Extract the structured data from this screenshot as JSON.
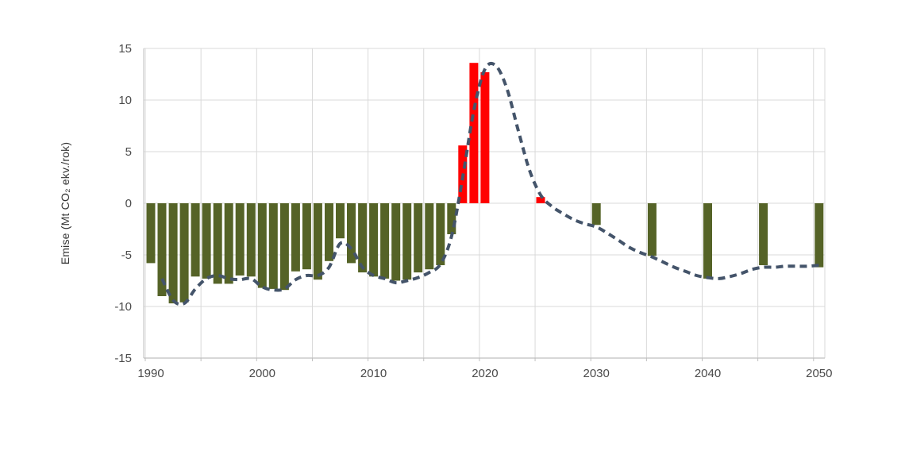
{
  "page": {
    "background": "#FFFFFF"
  },
  "chart_data": {
    "type": "bar",
    "subtype": "bar+dashed-line-combo",
    "title": "",
    "xlabel": "",
    "ylabel": "Emise (Mt CO₂ ekv./rok)",
    "ylim": [
      -15,
      15
    ],
    "yticks": [
      15,
      10,
      5,
      0,
      -5,
      -10,
      -15
    ],
    "xticks": [
      1990,
      2000,
      2010,
      2020,
      2030,
      2040,
      2050
    ],
    "xlim": [
      1989.3,
      2050.6
    ],
    "grid": {
      "horizontal_every": 5,
      "vertical_every_years": 5,
      "visible": true
    },
    "legend": {
      "position": "none"
    },
    "series": [
      {
        "name": "bars",
        "type": "bar",
        "note": "negative = olive sink bars, positive = red source bars",
        "points": [
          {
            "year": 1990,
            "value": -5.8
          },
          {
            "year": 1991,
            "value": -9.0
          },
          {
            "year": 1992,
            "value": -9.7
          },
          {
            "year": 1993,
            "value": -9.6
          },
          {
            "year": 1994,
            "value": -7.1
          },
          {
            "year": 1995,
            "value": -7.3
          },
          {
            "year": 1996,
            "value": -7.8
          },
          {
            "year": 1997,
            "value": -7.8
          },
          {
            "year": 1998,
            "value": -7.0
          },
          {
            "year": 1999,
            "value": -7.1
          },
          {
            "year": 2000,
            "value": -8.2
          },
          {
            "year": 2001,
            "value": -8.3
          },
          {
            "year": 2002,
            "value": -8.4
          },
          {
            "year": 2003,
            "value": -6.6
          },
          {
            "year": 2004,
            "value": -6.4
          },
          {
            "year": 2005,
            "value": -7.4
          },
          {
            "year": 2006,
            "value": -5.6
          },
          {
            "year": 2007,
            "value": -3.4
          },
          {
            "year": 2008,
            "value": -5.8
          },
          {
            "year": 2009,
            "value": -6.7
          },
          {
            "year": 2010,
            "value": -7.1
          },
          {
            "year": 2011,
            "value": -7.3
          },
          {
            "year": 2012,
            "value": -7.5
          },
          {
            "year": 2013,
            "value": -7.4
          },
          {
            "year": 2014,
            "value": -6.7
          },
          {
            "year": 2015,
            "value": -6.4
          },
          {
            "year": 2016,
            "value": -6.0
          },
          {
            "year": 2017,
            "value": -3.0
          },
          {
            "year": 2018,
            "value": 5.6
          },
          {
            "year": 2019,
            "value": 13.6
          },
          {
            "year": 2020,
            "value": 12.7
          },
          {
            "year": 2025,
            "value": 0.6
          },
          {
            "year": 2030,
            "value": -2.1
          },
          {
            "year": 2035,
            "value": -5.1
          },
          {
            "year": 2040,
            "value": -7.3
          },
          {
            "year": 2045,
            "value": -6.0
          },
          {
            "year": 2050,
            "value": -6.2
          }
        ]
      },
      {
        "name": "trend_line",
        "type": "line",
        "style": "dashed",
        "x": [
          1991,
          1992,
          1993,
          1994,
          1995,
          1996,
          1997,
          1998,
          1999,
          2000,
          2001,
          2002,
          2003,
          2004,
          2005,
          2006,
          2007,
          2008,
          2009,
          2010,
          2011,
          2012,
          2013,
          2014,
          2015,
          2016,
          2017,
          2018,
          2019,
          2020,
          2021,
          2022,
          2023,
          2024,
          2025,
          2026,
          2027,
          2028,
          2029,
          2030,
          2031,
          2032,
          2033,
          2034,
          2035,
          2036,
          2037,
          2038,
          2039,
          2040,
          2041,
          2042,
          2043,
          2044,
          2045,
          2046,
          2047,
          2048,
          2049,
          2050
        ],
        "y": [
          -7.3,
          -9.4,
          -9.7,
          -8.3,
          -7.3,
          -7.0,
          -7.3,
          -7.4,
          -7.3,
          -8.1,
          -8.4,
          -8.3,
          -7.4,
          -7.0,
          -7.0,
          -6.2,
          -3.9,
          -4.4,
          -6.2,
          -7.0,
          -7.3,
          -7.7,
          -7.5,
          -7.2,
          -6.7,
          -5.9,
          -3.2,
          2.5,
          9.0,
          13.0,
          13.3,
          11.0,
          7.0,
          3.2,
          0.8,
          -0.3,
          -1.0,
          -1.6,
          -2.0,
          -2.3,
          -2.9,
          -3.6,
          -4.3,
          -4.8,
          -5.2,
          -5.7,
          -6.2,
          -6.6,
          -7.0,
          -7.2,
          -7.3,
          -7.1,
          -6.8,
          -6.4,
          -6.2,
          -6.2,
          -6.1,
          -6.1,
          -6.1,
          -6.0
        ]
      }
    ],
    "colors": {
      "sink_bar": "#556327",
      "source_bar": "#FF0000",
      "trend_line": "#44546A",
      "gridline": "#D9D9D9",
      "axis_line": "#BFBFBF",
      "tick_label": "#4A4A4A",
      "axis_title": "#333333",
      "background": "#FFFFFF"
    }
  }
}
